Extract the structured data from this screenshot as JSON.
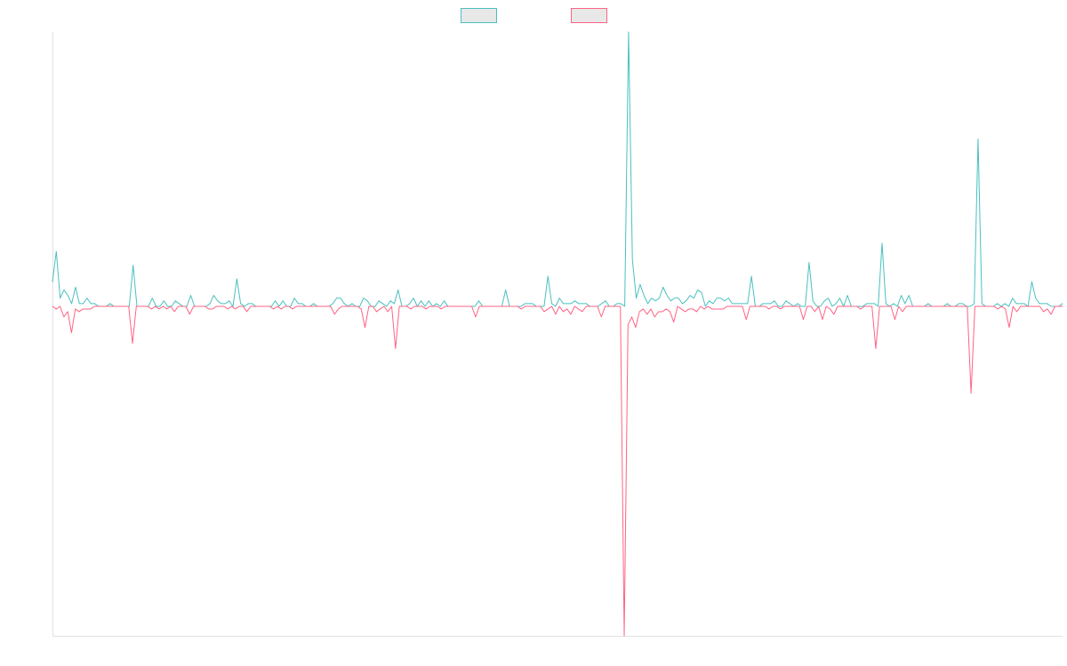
{
  "chart_data": {
    "type": "line",
    "title": "",
    "xlabel": "",
    "ylabel": "",
    "x_range": [
      0,
      238
    ],
    "ylim": [
      -1,
      1
    ],
    "grid": false,
    "legend": {
      "placement": "top-center",
      "swatch_fill": "#e8e8e8"
    },
    "series": [
      {
        "color": "#4bc0c0",
        "values": [
          0.09,
          0.2,
          0.03,
          0.06,
          0.04,
          0.01,
          0.07,
          0.01,
          0.01,
          0.03,
          0.01,
          0.01,
          0,
          0,
          0,
          0.01,
          0,
          0,
          0,
          0,
          0,
          0.15,
          0,
          0,
          0,
          0,
          0.03,
          0,
          0,
          0.02,
          0,
          0,
          0.02,
          0.01,
          0,
          0,
          0.04,
          0,
          0,
          0,
          0,
          0.01,
          0.04,
          0.02,
          0.01,
          0.01,
          0.02,
          0,
          0.1,
          0.01,
          0,
          0.01,
          0.01,
          0,
          0,
          0,
          0,
          0,
          0.02,
          0,
          0.02,
          0,
          0,
          0.03,
          0.01,
          0.01,
          0,
          0,
          0.01,
          0,
          0,
          0,
          0,
          0.01,
          0.03,
          0.03,
          0.01,
          0,
          0.01,
          0,
          0,
          0.03,
          0.02,
          0,
          0,
          0.02,
          0.01,
          0,
          0.02,
          0.01,
          0.06,
          0,
          0,
          0.01,
          0.03,
          0,
          0.02,
          0,
          0.02,
          0,
          0.01,
          0,
          0.02,
          0,
          0,
          0,
          0,
          0,
          0,
          0,
          0,
          0.02,
          0,
          0,
          0,
          0,
          0,
          0,
          0.06,
          0,
          0,
          0,
          0,
          0.01,
          0.01,
          0.01,
          0,
          0,
          0,
          0.11,
          0.01,
          0,
          0.03,
          0.01,
          0.01,
          0.01,
          0.02,
          0.01,
          0.01,
          0.01,
          0,
          0,
          0,
          0.01,
          0.02,
          0,
          0,
          0.01,
          0.01,
          0,
          1,
          0.17,
          0.03,
          0.08,
          0.04,
          0.01,
          0.03,
          0.02,
          0.03,
          0.07,
          0.04,
          0.02,
          0.03,
          0.03,
          0.01,
          0.02,
          0.04,
          0.03,
          0.06,
          0.05,
          0,
          0.02,
          0.01,
          0.03,
          0.03,
          0.02,
          0.03,
          0.01,
          0.01,
          0.01,
          0.01,
          0.01,
          0.11,
          0,
          0,
          0.01,
          0.01,
          0.01,
          0.02,
          0,
          0,
          0.02,
          0.01,
          0,
          0.01,
          0,
          0,
          0.16,
          0.02,
          0,
          0,
          0.02,
          0.03,
          0,
          0.01,
          0.03,
          0,
          0.04,
          0,
          0,
          0,
          0,
          0.01,
          0.01,
          0.01,
          0,
          0.23,
          0.01,
          0,
          0.01,
          0,
          0.04,
          0.01,
          0.04,
          0,
          0,
          0,
          0,
          0.01,
          0,
          0,
          0,
          0,
          0.01,
          0,
          0,
          0.01,
          0.01,
          0,
          0,
          0.01,
          0.61,
          0.01,
          0,
          0,
          0,
          0.01,
          0,
          0.01,
          0,
          0.03,
          0.01,
          0.01,
          0.01,
          0,
          0.09,
          0.03,
          0.01,
          0.01,
          0.01,
          0,
          0,
          0,
          0.01
        ]
      },
      {
        "color": "#ff6384",
        "values": [
          0,
          -0.01,
          0,
          -0.04,
          -0.02,
          -0.1,
          -0.01,
          -0.02,
          -0.01,
          -0.01,
          -0.01,
          0,
          0,
          0,
          0,
          0,
          0,
          0,
          0,
          0,
          0,
          -0.14,
          0,
          0,
          0,
          0,
          -0.01,
          0,
          -0.01,
          0,
          -0.01,
          0,
          -0.02,
          0,
          0,
          0,
          -0.03,
          0,
          0,
          0,
          0,
          -0.01,
          -0.01,
          0,
          0,
          0,
          -0.01,
          0,
          -0.01,
          0,
          0,
          -0.02,
          0,
          0,
          0,
          0,
          0,
          0,
          -0.01,
          0,
          -0.01,
          0,
          0,
          -0.01,
          0,
          0,
          0,
          0,
          0,
          0,
          0,
          0,
          0,
          0,
          -0.03,
          -0.01,
          0,
          0,
          0,
          0,
          0,
          -0.01,
          -0.08,
          0,
          0,
          -0.02,
          -0.01,
          0,
          -0.02,
          0,
          -0.16,
          0,
          0,
          0,
          -0.01,
          0,
          0,
          0,
          -0.01,
          0,
          0,
          0,
          -0.01,
          0,
          0,
          0,
          0,
          0,
          0,
          0,
          0,
          -0.04,
          0,
          0,
          0,
          0,
          0,
          0,
          0,
          0,
          0,
          0,
          0,
          -0.01,
          0,
          0,
          0,
          0,
          0,
          -0.02,
          -0.01,
          0,
          -0.03,
          0,
          -0.02,
          -0.01,
          -0.03,
          0,
          -0.01,
          -0.02,
          0,
          0,
          0,
          0,
          -0.04,
          0,
          0,
          0,
          0,
          0,
          -1.25,
          -0.07,
          -0.04,
          -0.08,
          -0.02,
          -0.01,
          -0.03,
          -0.01,
          -0.04,
          -0.02,
          -0.02,
          -0.01,
          -0.02,
          -0.06,
          0,
          -0.01,
          -0.02,
          -0.01,
          -0.01,
          -0.02,
          0,
          -0.01,
          0,
          -0.01,
          -0.01,
          -0.01,
          -0.01,
          0,
          0,
          0,
          0,
          0,
          -0.05,
          0,
          0,
          0,
          0,
          0,
          -0.01,
          0,
          0,
          -0.01,
          0,
          0,
          0,
          0,
          0,
          -0.05,
          0,
          0,
          -0.02,
          0,
          -0.05,
          0,
          -0.01,
          -0.03,
          0,
          0,
          0,
          0,
          0,
          0,
          -0.01,
          0,
          0,
          0,
          -0.16,
          0,
          0,
          0,
          0,
          -0.05,
          0,
          -0.02,
          0,
          0,
          0,
          0,
          0,
          0,
          0,
          0,
          0,
          0,
          0,
          0,
          0,
          0,
          0,
          0,
          0,
          -0.33,
          0,
          0,
          0,
          0,
          0,
          0,
          -0.01,
          0,
          -0.01,
          -0.08,
          0,
          -0.02,
          0,
          0,
          0,
          0,
          0,
          0,
          -0.02,
          -0.01,
          -0.03,
          0,
          0,
          0
        ]
      }
    ]
  }
}
